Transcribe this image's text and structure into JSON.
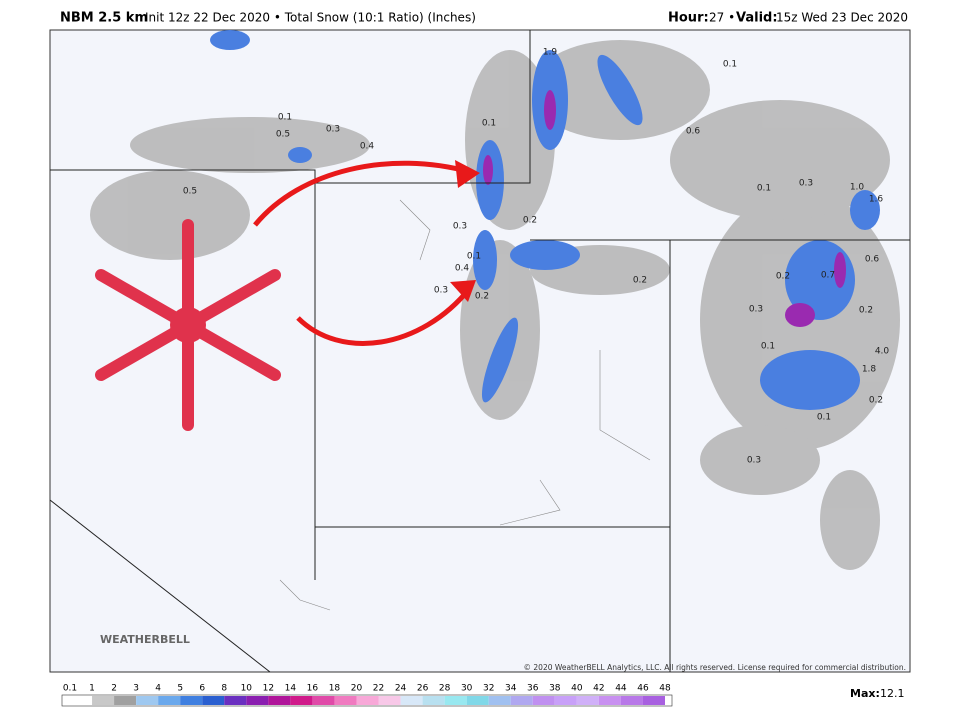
{
  "header": {
    "model": "NBM 2.5 km",
    "info": "Init 12z 22 Dec 2020 • Total Snow (10:1 Ratio) (Inches)",
    "hour_label": "Hour:",
    "hour": "27 •",
    "valid_label": "Valid:",
    "valid": "15z Wed 23 Dec 2020"
  },
  "map": {
    "labels": [
      "0.1",
      "0.5",
      "0.3",
      "0.4",
      "0.5",
      "0.1",
      "0.3",
      "0.1",
      "0.4",
      "0.3",
      "0.2",
      "0.2",
      "1.9",
      "0.1",
      "0.6",
      "0.1",
      "0.3",
      "1.0",
      "1.6",
      "0.2",
      "0.7",
      "0.6",
      "0.3",
      "0.2",
      "0.1",
      "4.0",
      "1.8",
      "0.2",
      "0.1",
      "0.3",
      "0.2"
    ],
    "logo": "WEATHERBELL",
    "copyright": "© 2020 WeatherBELL Analytics, LLC. All rights reserved. License required for commercial distribution."
  },
  "colorbar": {
    "ticks": [
      0.1,
      1,
      2,
      3,
      4,
      5,
      6,
      8,
      10,
      12,
      14,
      16,
      18,
      20,
      22,
      24,
      26,
      28,
      30,
      32,
      34,
      36,
      38,
      40,
      42,
      44,
      46,
      48
    ],
    "colors": [
      "#ffffff",
      "#c8c8c8",
      "#a0a0a0",
      "#9ec8f0",
      "#6aa8ec",
      "#3f7fe0",
      "#2a5fd0",
      "#6a2fc0",
      "#8a1eb0",
      "#b0159a",
      "#d01a8a",
      "#e04aa8",
      "#f07ac0",
      "#f8a8d8",
      "#f8c8e8",
      "#d8e8f8",
      "#b8e0f0",
      "#98e8f0",
      "#80d8e8",
      "#a0c0f0",
      "#b0a8f0",
      "#c090f0",
      "#c8a0f8",
      "#d0b0f8",
      "#c890f0",
      "#b878e8",
      "#a860e0"
    ],
    "max_label": "Max:",
    "max": "12.1"
  }
}
